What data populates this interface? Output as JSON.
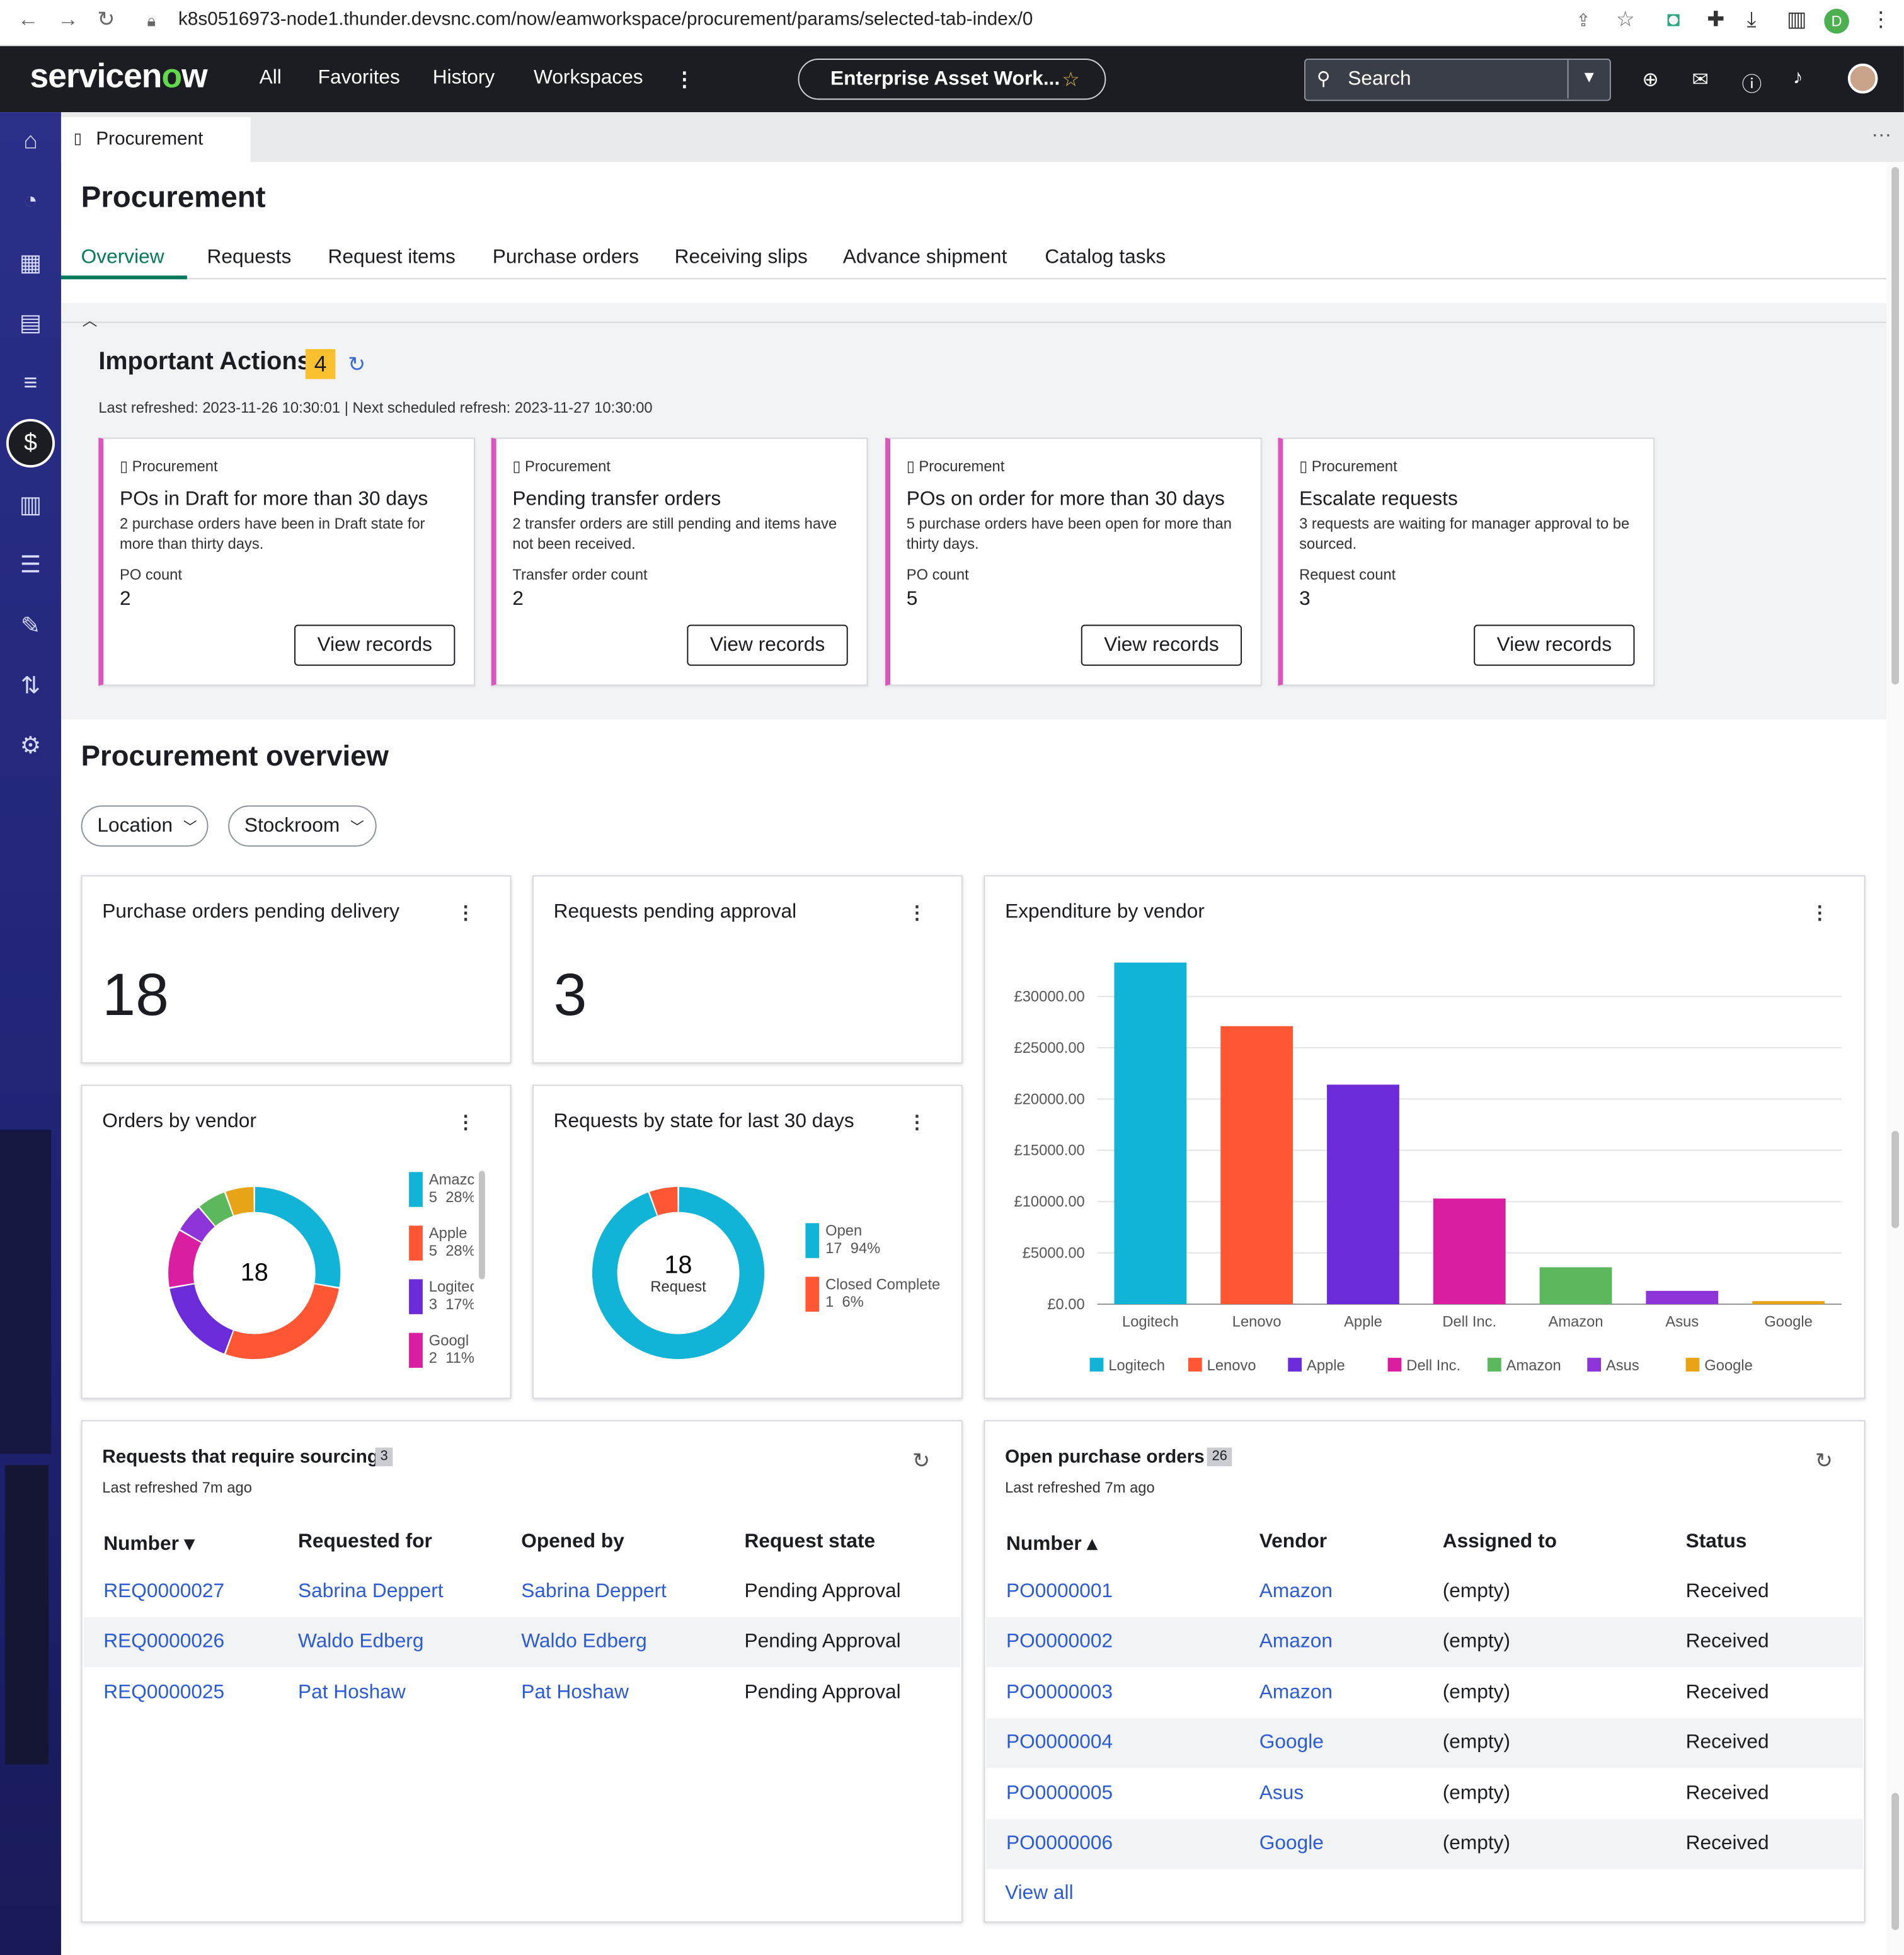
{
  "browser": {
    "url": "k8s0516973-node1.thunder.devsnc.com/now/eamworkspace/procurement/params/selected-tab-index/0"
  },
  "topnav": {
    "logo": "servicenow",
    "menu": [
      "All",
      "Favorites",
      "History",
      "Workspaces"
    ],
    "workspace_label": "Enterprise Asset Work...",
    "search_label": "Search"
  },
  "tab": {
    "label": "Procurement"
  },
  "page": {
    "title": "Procurement",
    "tabs": [
      "Overview",
      "Requests",
      "Request items",
      "Purchase orders",
      "Receiving slips",
      "Advance shipment",
      "Catalog tasks"
    ]
  },
  "important_actions": {
    "title": "Important Actions",
    "count": "4",
    "refreshed": "Last refreshed: 2023-11-26 10:30:01 | Next scheduled refresh: 2023-11-27 10:30:00",
    "cards": [
      {
        "category": "Procurement",
        "title": "POs in Draft for more than 30 days",
        "desc": "2 purchase orders have been in Draft state for more than thirty days.",
        "count_label": "PO count",
        "count": "2",
        "button": "View records"
      },
      {
        "category": "Procurement",
        "title": "Pending transfer orders",
        "desc": "2 transfer orders are still pending and items have not been received.",
        "count_label": "Transfer order count",
        "count": "2",
        "button": "View records"
      },
      {
        "category": "Procurement",
        "title": "POs on order for more than 30 days",
        "desc": "5 purchase orders have been open for more than thirty days.",
        "count_label": "PO count",
        "count": "5",
        "button": "View records"
      },
      {
        "category": "Procurement",
        "title": "Escalate requests",
        "desc": "3 requests are waiting for manager approval to be sourced.",
        "count_label": "Request count",
        "count": "3",
        "button": "View records"
      }
    ]
  },
  "overview": {
    "title": "Procurement overview",
    "filters": [
      "Location",
      "Stockroom"
    ],
    "kpi_po": {
      "title": "Purchase orders pending delivery",
      "value": "18"
    },
    "kpi_req": {
      "title": "Requests pending approval",
      "value": "3"
    },
    "orders_by_vendor": {
      "title": "Orders by vendor",
      "center": "18",
      "legend": [
        {
          "name": "Amazc",
          "value": "5",
          "pct": "28%"
        },
        {
          "name": "Apple",
          "value": "5",
          "pct": "28%"
        },
        {
          "name": "Logitec",
          "value": "3",
          "pct": "17%"
        },
        {
          "name": "Googl",
          "value": "2",
          "pct": "11%"
        }
      ]
    },
    "requests_by_state": {
      "title": "Requests by state for last 30 days",
      "center": "18",
      "center_label": "Request",
      "legend": [
        {
          "name": "Open",
          "value": "17",
          "pct": "94%"
        },
        {
          "name": "Closed Complete",
          "value": "1",
          "pct": "6%"
        }
      ]
    },
    "expenditure": {
      "title": "Expenditure by vendor"
    }
  },
  "chart_data": [
    {
      "type": "pie",
      "title": "Orders by vendor",
      "categories": [
        "Amazon",
        "Apple",
        "Logitech",
        "Google",
        "Asus",
        "Lenovo",
        "Dell Inc."
      ],
      "values": [
        5,
        5,
        3,
        2,
        1,
        1,
        1
      ],
      "colors": [
        "#11b3d6",
        "#ff5733",
        "#6c2bd9",
        "#d91ea1",
        "#8d35d9",
        "#5cb85c",
        "#e8a317"
      ]
    },
    {
      "type": "pie",
      "title": "Requests by state for last 30 days",
      "categories": [
        "Open",
        "Closed Complete"
      ],
      "values": [
        17,
        1
      ],
      "colors": [
        "#11b3d6",
        "#ff5733"
      ]
    },
    {
      "type": "bar",
      "title": "Expenditure by vendor",
      "categories": [
        "Logitech",
        "Lenovo",
        "Apple",
        "Dell Inc.",
        "Amazon",
        "Asus",
        "Google"
      ],
      "values": [
        33300,
        27100,
        21400,
        10300,
        3600,
        1300,
        300
      ],
      "colors": [
        "#11b3d6",
        "#ff5733",
        "#6c2bd9",
        "#d91ea1",
        "#5cb85c",
        "#8d35d9",
        "#e8a317"
      ],
      "yticks": [
        "£0.00",
        "£5000.00",
        "£10000.00",
        "£15000.00",
        "£20000.00",
        "£25000.00",
        "£30000.00"
      ],
      "ylim": [
        0,
        33300
      ]
    }
  ],
  "sourcing": {
    "title": "Requests that require sourcing",
    "count": "3",
    "refreshed": "Last refreshed 7m ago",
    "headers": [
      "Number",
      "Requested for",
      "Opened by",
      "Request state"
    ],
    "rows": [
      [
        "REQ0000027",
        "Sabrina Deppert",
        "Sabrina Deppert",
        "Pending Approval"
      ],
      [
        "REQ0000026",
        "Waldo Edberg",
        "Waldo Edberg",
        "Pending Approval"
      ],
      [
        "REQ0000025",
        "Pat Hoshaw",
        "Pat Hoshaw",
        "Pending Approval"
      ]
    ]
  },
  "open_pos": {
    "title": "Open purchase orders",
    "count": "26",
    "refreshed": "Last refreshed 7m ago",
    "headers": [
      "Number",
      "Vendor",
      "Assigned to",
      "Status"
    ],
    "rows": [
      [
        "PO0000001",
        "Amazon",
        "(empty)",
        "Received"
      ],
      [
        "PO0000002",
        "Amazon",
        "(empty)",
        "Received"
      ],
      [
        "PO0000003",
        "Amazon",
        "(empty)",
        "Received"
      ],
      [
        "PO0000004",
        "Google",
        "(empty)",
        "Received"
      ],
      [
        "PO0000005",
        "Asus",
        "(empty)",
        "Received"
      ],
      [
        "PO0000006",
        "Google",
        "(empty)",
        "Received"
      ]
    ],
    "view_all": "View all"
  }
}
